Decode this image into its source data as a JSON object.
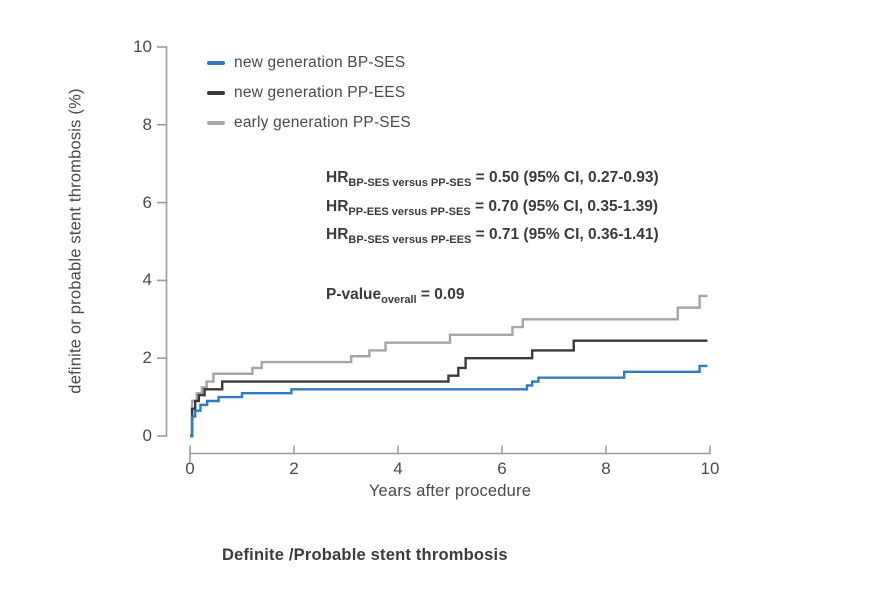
{
  "chart_data": {
    "type": "line",
    "subtype": "step",
    "title": "Definite /Probable stent thrombosis",
    "xlabel": "Years after procedure",
    "ylabel": "definite or probable stent thrombosis (%)",
    "xlim": [
      0,
      10
    ],
    "ylim": [
      0,
      10
    ],
    "x_ticks": [
      0,
      2,
      4,
      6,
      8,
      10
    ],
    "y_ticks": [
      0,
      2,
      4,
      6,
      8,
      10
    ],
    "grid": false,
    "legend_position": "inside-top-left",
    "series": [
      {
        "name": "early generation PP-SES",
        "color": "#a6a6a8",
        "points": [
          [
            0,
            0
          ],
          [
            0.04,
            0.9
          ],
          [
            0.13,
            1.1
          ],
          [
            0.23,
            1.25
          ],
          [
            0.32,
            1.4
          ],
          [
            0.45,
            1.6
          ],
          [
            1.2,
            1.75
          ],
          [
            1.38,
            1.9
          ],
          [
            3.1,
            2.05
          ],
          [
            3.45,
            2.2
          ],
          [
            3.76,
            2.4
          ],
          [
            5.0,
            2.6
          ],
          [
            6.2,
            2.8
          ],
          [
            6.4,
            3.0
          ],
          [
            9.38,
            3.3
          ],
          [
            9.8,
            3.6
          ],
          [
            9.95,
            3.6
          ]
        ]
      },
      {
        "name": "new generation PP-EES",
        "color": "#3a3a3c",
        "points": [
          [
            0,
            0
          ],
          [
            0.04,
            0.7
          ],
          [
            0.1,
            0.9
          ],
          [
            0.17,
            1.05
          ],
          [
            0.28,
            1.2
          ],
          [
            0.62,
            1.4
          ],
          [
            4.97,
            1.55
          ],
          [
            5.16,
            1.75
          ],
          [
            5.3,
            2.0
          ],
          [
            6.58,
            2.2
          ],
          [
            7.38,
            2.45
          ],
          [
            9.95,
            2.45
          ]
        ]
      },
      {
        "name": "new generation BP-SES",
        "color": "#2e7bbf",
        "points": [
          [
            0,
            0
          ],
          [
            0.04,
            0.5
          ],
          [
            0.1,
            0.65
          ],
          [
            0.2,
            0.8
          ],
          [
            0.33,
            0.9
          ],
          [
            0.55,
            1.0
          ],
          [
            1.0,
            1.1
          ],
          [
            1.95,
            1.2
          ],
          [
            6.48,
            1.3
          ],
          [
            6.58,
            1.4
          ],
          [
            6.7,
            1.5
          ],
          [
            8.35,
            1.65
          ],
          [
            9.8,
            1.8
          ],
          [
            9.95,
            1.8
          ]
        ]
      }
    ],
    "annotations": [
      {
        "prefix": "HR",
        "subscript": "BP-SES versus PP-SES",
        "value": " = 0.50 (95% CI, 0.27-0.93)"
      },
      {
        "prefix": "HR",
        "subscript": "PP-EES versus PP-SES",
        "value": " = 0.70 (95% CI, 0.35-1.39)"
      },
      {
        "prefix": "HR",
        "subscript": "BP-SES versus PP-EES",
        "value": " = 0.71 (95% CI, 0.36-1.41)"
      }
    ],
    "p_value": {
      "prefix": "P-value",
      "subscript": "overall",
      "value": " = 0.09"
    }
  },
  "legend": {
    "items": [
      {
        "label": "new generation BP-SES",
        "color": "#2e7bbf"
      },
      {
        "label": "new generation PP-EES",
        "color": "#3a3a3c"
      },
      {
        "label": "early generation PP-SES",
        "color": "#a6a6a8"
      }
    ]
  },
  "colors": {
    "background": "#ffffff",
    "axis": "#9c9c9e",
    "tick_text": "#4b4b4d",
    "label_text": "#4a4a4c",
    "annotation_text": "#3b3b3d"
  }
}
